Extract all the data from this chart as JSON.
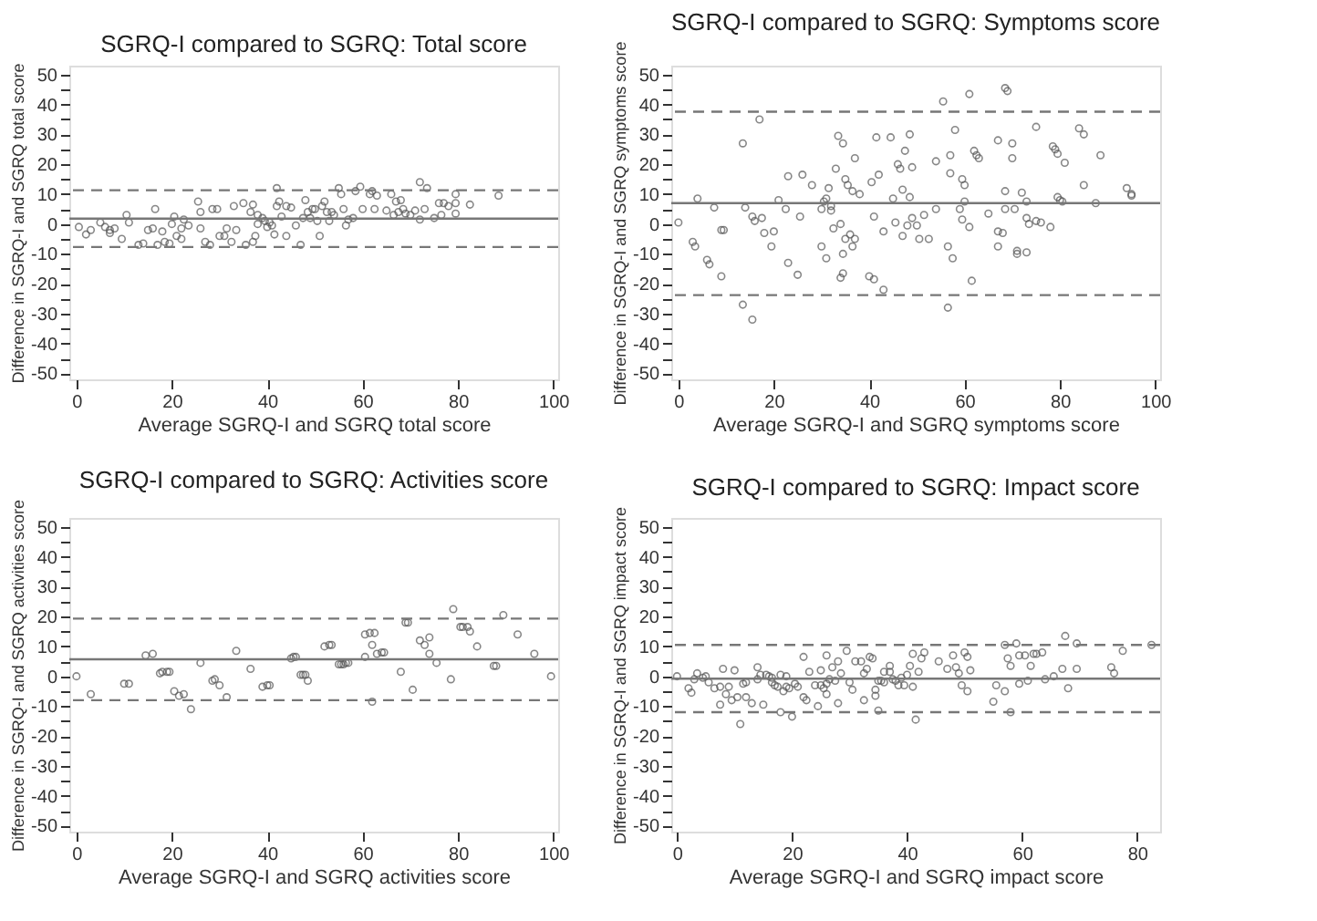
{
  "chart_data": [
    {
      "type": "scatter",
      "title": "SGRQ-I compared to SGRQ: Total score",
      "xlabel": "Average SGRQ-I and SGRQ total score",
      "ylabel": "Difference in SGRQ-I and SGRQ total score",
      "marker": "circle",
      "grid": false,
      "xlim": [
        -1.5,
        101
      ],
      "xticks": [
        0,
        20,
        40,
        60,
        80,
        100
      ],
      "ylim": [
        -52,
        53
      ],
      "yticks": [
        -50,
        {
          "value": -45,
          "label": null
        },
        -40,
        {
          "value": -35,
          "label": null
        },
        -30,
        {
          "value": -25,
          "label": null
        },
        -20,
        {
          "value": -15,
          "label": null
        },
        -10,
        {
          "value": -5,
          "label": null
        },
        0,
        {
          "value": 5,
          "label": null
        },
        10,
        {
          "value": 15,
          "label": null
        },
        20,
        {
          "value": 25,
          "label": null
        },
        30,
        {
          "value": 35,
          "label": null
        },
        40,
        {
          "value": 45,
          "label": null
        },
        50
      ],
      "ref_lines": [
        {
          "axis": "y",
          "value": 1.8,
          "line_style": "solid",
          "color": "#777777"
        },
        {
          "axis": "y",
          "value": 11.3,
          "line_style": "dashed",
          "color": "#777777"
        },
        {
          "axis": "y",
          "value": -7.7,
          "line_style": "dashed",
          "color": "#777777"
        }
      ],
      "series": [
        {
          "color": "#555555",
          "x": [
            0.5,
            2,
            3,
            5,
            6,
            7,
            7,
            8,
            9.5,
            10.5,
            11,
            13,
            14,
            15,
            16,
            16.5,
            17,
            18,
            18.5,
            19.5,
            20,
            20.5,
            21,
            22,
            22.5,
            22,
            23.5,
            25.5,
            26,
            26,
            27,
            28,
            28.5,
            29.5,
            30,
            31,
            31.5,
            32.5,
            33,
            33.5,
            35,
            35.5,
            36.5,
            37,
            37,
            37.5,
            38,
            38,
            39,
            39.5,
            40,
            40.5,
            41,
            41.5,
            42,
            42,
            42.5,
            43,
            44,
            44,
            45,
            46,
            47,
            47.5,
            48,
            48.5,
            49,
            49.5,
            50,
            50.5,
            51,
            51.5,
            52,
            52.5,
            53,
            53.5,
            54,
            55,
            55.5,
            56,
            56.5,
            57,
            58,
            58.5,
            59.5,
            60,
            61.5,
            62,
            62.5,
            63,
            65,
            66,
            66.5,
            67,
            67.5,
            68,
            68.5,
            69,
            70,
            71,
            72,
            72,
            73,
            73.5,
            75,
            76,
            76.5,
            77,
            78,
            79.5,
            79.5,
            79.5,
            82.5,
            88.5
          ],
          "values": [
            -1,
            -3.5,
            -2,
            0.5,
            -1,
            -3,
            -2,
            -1.5,
            -5,
            3,
            0.5,
            -7,
            -6.5,
            -2,
            -1.5,
            5,
            -7,
            -2.5,
            -6,
            -6.5,
            0,
            2.5,
            -4,
            -1.5,
            1.5,
            -5,
            -0.5,
            7.5,
            4,
            -1.5,
            -6,
            -7,
            5,
            5,
            -4,
            -4,
            -1.5,
            -6,
            6,
            -2,
            7,
            -7,
            4,
            6.5,
            -6,
            -4,
            3,
            0,
            2,
            1,
            -1,
            0.5,
            -0.5,
            -3.5,
            12,
            6,
            7.5,
            2.5,
            6,
            -4,
            5.5,
            -0.5,
            -7,
            2,
            8,
            4,
            2,
            5,
            5,
            1,
            -4,
            6,
            7.5,
            4,
            1,
            4,
            3,
            12,
            10,
            5,
            -0.5,
            1.5,
            2,
            11,
            12.5,
            5,
            10,
            11,
            5,
            9.5,
            4.5,
            10,
            3,
            7.5,
            4,
            8,
            5,
            3.5,
            3,
            4.5,
            14,
            1.5,
            5,
            12,
            2,
            7,
            3,
            7,
            6,
            10,
            3.5,
            7,
            6.5,
            9.5
          ]
        }
      ]
    },
    {
      "type": "scatter",
      "title": "SGRQ-I compared to SGRQ: Symptoms score",
      "xlabel": "Average SGRQ-I and SGRQ symptoms score",
      "ylabel": "Difference in SGRQ-I and SGRQ symptoms score",
      "marker": "circle",
      "grid": false,
      "xlim": [
        -1.5,
        101
      ],
      "xticks": [
        0,
        20,
        40,
        60,
        80,
        100
      ],
      "ylim": [
        -52,
        53
      ],
      "yticks": [
        -50,
        {
          "value": -45,
          "label": null
        },
        -40,
        {
          "value": -35,
          "label": null
        },
        -30,
        {
          "value": -25,
          "label": null
        },
        -20,
        {
          "value": -15,
          "label": null
        },
        -10,
        {
          "value": -5,
          "label": null
        },
        0,
        {
          "value": 5,
          "label": null
        },
        10,
        {
          "value": 15,
          "label": null
        },
        20,
        {
          "value": 25,
          "label": null
        },
        30,
        {
          "value": 35,
          "label": null
        },
        40,
        {
          "value": 45,
          "label": null
        },
        50
      ],
      "ref_lines": [
        {
          "axis": "y",
          "value": 7,
          "line_style": "solid",
          "color": "#777777"
        },
        {
          "axis": "y",
          "value": 37.6,
          "line_style": "dashed",
          "color": "#777777"
        },
        {
          "axis": "y",
          "value": -23.8,
          "line_style": "dashed",
          "color": "#777777"
        }
      ],
      "series": [
        {
          "color": "#555555",
          "x": [
            0,
            3,
            3.5,
            4,
            6,
            6.5,
            7.5,
            9,
            9,
            9.5,
            13.5,
            13.5,
            14,
            15.5,
            16,
            15.5,
            17,
            17.5,
            18,
            19.5,
            20,
            21,
            22.5,
            23,
            23,
            25,
            25.5,
            26,
            28,
            30,
            30,
            30.5,
            31,
            31,
            31.5,
            32,
            32,
            32.5,
            33,
            33.5,
            34,
            34.5,
            34.5,
            34,
            34.5,
            35,
            35,
            35.5,
            36,
            36.5,
            36.5,
            37,
            37,
            38,
            40,
            40.5,
            41,
            41,
            41.5,
            42,
            43,
            43,
            44.5,
            45,
            45.5,
            46,
            46.5,
            47,
            47,
            47.5,
            48,
            48.5,
            48.5,
            49,
            49,
            50,
            50.5,
            51.5,
            52.5,
            54,
            54,
            55.5,
            56.5,
            56.5,
            57,
            57,
            57.5,
            58,
            59,
            59.5,
            59.5,
            60,
            60,
            61,
            61,
            61.5,
            62,
            62.5,
            63,
            65,
            67,
            67,
            67,
            68,
            68.5,
            68.5,
            68.5,
            69,
            70,
            70,
            70.5,
            71,
            71,
            72,
            73,
            73,
            73,
            73.5,
            75,
            75,
            76,
            78,
            78.5,
            79,
            79.5,
            79.5,
            80,
            80.5,
            81,
            84,
            85,
            85,
            87.5,
            88.5,
            94,
            95,
            95
          ],
          "values": [
            0.5,
            -6,
            -7.5,
            8.5,
            -12,
            -13.5,
            5.5,
            -17.5,
            -2,
            -2,
            27,
            -27,
            5.5,
            2.5,
            1,
            -32,
            35,
            2,
            -3,
            -7.5,
            -2.5,
            8,
            5,
            16,
            -13,
            -17,
            2.5,
            16.5,
            13,
            5,
            -7.5,
            7.5,
            -11.5,
            8.5,
            12,
            6,
            4.5,
            -1.5,
            18.5,
            29.5,
            -18,
            -16.5,
            -10,
            0,
            27,
            15,
            -5,
            13,
            -3.5,
            11,
            -7.5,
            22,
            -5,
            10,
            -17.5,
            14,
            -18.5,
            2.5,
            29,
            16.5,
            -22,
            -2.5,
            29,
            8.5,
            0.5,
            20,
            18.5,
            11.5,
            -4,
            24.5,
            -0.5,
            30,
            9,
            19,
            2,
            -0.5,
            -5,
            3,
            -5,
            21,
            5,
            41,
            -28,
            -7.5,
            23,
            17,
            -11.5,
            31.5,
            5,
            15,
            1.5,
            7.5,
            13,
            43.5,
            -1,
            -19,
            24.5,
            23,
            22,
            3.5,
            28,
            -2.5,
            -7.5,
            -3,
            5,
            11,
            45.5,
            44.5,
            27,
            22,
            5,
            -9,
            -10,
            10.5,
            7.5,
            2,
            -9.5,
            0,
            32.5,
            1,
            0.5,
            -1,
            26,
            25,
            23.5,
            9,
            8,
            7.5,
            20.5,
            32,
            30,
            13,
            7,
            23,
            12,
            10,
            9.5
          ]
        }
      ]
    },
    {
      "type": "scatter",
      "title": "SGRQ-I compared to SGRQ: Activities score",
      "xlabel": "Average SGRQ-I and SGRQ activities score",
      "ylabel": "Difference in SGRQ-I and SGRQ activities score",
      "marker": "circle",
      "grid": false,
      "xlim": [
        -1.5,
        101
      ],
      "xticks": [
        0,
        20,
        40,
        60,
        80,
        100
      ],
      "ylim": [
        -52,
        53
      ],
      "yticks": [
        -50,
        {
          "value": -45,
          "label": null
        },
        -40,
        {
          "value": -35,
          "label": null
        },
        -30,
        {
          "value": -25,
          "label": null
        },
        -20,
        {
          "value": -15,
          "label": null
        },
        -10,
        {
          "value": -5,
          "label": null
        },
        0,
        {
          "value": 5,
          "label": null
        },
        10,
        {
          "value": 15,
          "label": null
        },
        20,
        {
          "value": 25,
          "label": null
        },
        30,
        {
          "value": 35,
          "label": null
        },
        40,
        {
          "value": 45,
          "label": null
        },
        50
      ],
      "ref_lines": [
        {
          "axis": "y",
          "value": 5.7,
          "line_style": "solid",
          "color": "#777777"
        },
        {
          "axis": "y",
          "value": 19.3,
          "line_style": "dashed",
          "color": "#777777"
        },
        {
          "axis": "y",
          "value": -8,
          "line_style": "dashed",
          "color": "#777777"
        }
      ],
      "series": [
        {
          "color": "#555555",
          "x": [
            0,
            3,
            10,
            11,
            14.5,
            16,
            17.5,
            18,
            19,
            19.5,
            20.5,
            21.5,
            22.5,
            24,
            26,
            28.5,
            29,
            30,
            31.5,
            33.5,
            36.5,
            39,
            40,
            40.5,
            45,
            45.5,
            46,
            47,
            47.5,
            48,
            48.5,
            52,
            53,
            53.5,
            55,
            55.5,
            56,
            56.5,
            57,
            60.5,
            60.5,
            61.5,
            62,
            62.5,
            62,
            63,
            64,
            64.5,
            68,
            69,
            69.5,
            70.5,
            72,
            73,
            74,
            74,
            75.5,
            78.5,
            79,
            80.5,
            81,
            82,
            82.5,
            84,
            87.5,
            88,
            89.5,
            92.5,
            96,
            99.5
          ],
          "values": [
            0,
            -6,
            -2.5,
            -2.5,
            7,
            7.5,
            1,
            1.5,
            1.5,
            1.5,
            -5,
            -6.5,
            -6,
            -11,
            4.5,
            -1.5,
            -1,
            -3,
            -7,
            8.5,
            2.5,
            -3.5,
            -3,
            -3,
            6,
            6.5,
            6.5,
            0.5,
            0.5,
            0.5,
            -1.5,
            10,
            10.5,
            10.5,
            4,
            4,
            4,
            4.5,
            4.5,
            14,
            6.5,
            14.5,
            10.5,
            14.5,
            -8.5,
            7.5,
            8,
            8,
            1.5,
            18,
            18,
            -4.5,
            12,
            10.5,
            13,
            7.5,
            4.5,
            -1,
            22.5,
            16.5,
            16.5,
            16.5,
            15,
            10,
            3.5,
            3.5,
            20.5,
            14,
            7.5,
            0
          ]
        }
      ]
    },
    {
      "type": "scatter",
      "title": "SGRQ-I compared to SGRQ: Impact score",
      "xlabel": "Average SGRQ-I and SGRQ impact score",
      "ylabel": "Difference in SGRQ-I and SGRQ impact score",
      "marker": "circle",
      "grid": false,
      "xlim": [
        -1,
        84
      ],
      "xticks": [
        0,
        20,
        40,
        60,
        80
      ],
      "ylim": [
        -52,
        53
      ],
      "yticks": [
        -50,
        {
          "value": -45,
          "label": null
        },
        -40,
        {
          "value": -35,
          "label": null
        },
        -30,
        {
          "value": -25,
          "label": null
        },
        -20,
        {
          "value": -15,
          "label": null
        },
        -10,
        {
          "value": -5,
          "label": null
        },
        0,
        {
          "value": 5,
          "label": null
        },
        10,
        {
          "value": 15,
          "label": null
        },
        20,
        {
          "value": 25,
          "label": null
        },
        30,
        {
          "value": 35,
          "label": null
        },
        40,
        {
          "value": 45,
          "label": null
        },
        50
      ],
      "ref_lines": [
        {
          "axis": "y",
          "value": -0.8,
          "line_style": "solid",
          "color": "#777777"
        },
        {
          "axis": "y",
          "value": 10.5,
          "line_style": "dashed",
          "color": "#777777"
        },
        {
          "axis": "y",
          "value": -12,
          "line_style": "dashed",
          "color": "#777777"
        }
      ],
      "series": [
        {
          "color": "#555555",
          "x": [
            0,
            2,
            2.5,
            3,
            3.5,
            4.5,
            5,
            5.5,
            6.5,
            7.5,
            7.5,
            8,
            8.5,
            9,
            9.5,
            10,
            10.5,
            11,
            11.5,
            12,
            12,
            13,
            14,
            14,
            14.5,
            15,
            15.5,
            16,
            16.5,
            16.5,
            17,
            17.5,
            18,
            18,
            18.5,
            19,
            19,
            19.5,
            20,
            20.5,
            21,
            22,
            22.5,
            22,
            23,
            24,
            24.5,
            25,
            25,
            25.5,
            26,
            26,
            26,
            26.5,
            27,
            27.5,
            28,
            28,
            28.5,
            29.5,
            30,
            30.5,
            31,
            32,
            32.5,
            32.5,
            33,
            33.5,
            34,
            34.5,
            34.5,
            35,
            35,
            35.5,
            36,
            36,
            37,
            37,
            37.5,
            38,
            38.5,
            39,
            39.5,
            40,
            40.5,
            41,
            41,
            41.5,
            42,
            42.5,
            43,
            45.5,
            47,
            48,
            48.5,
            49,
            49.5,
            50,
            50.5,
            50.5,
            51,
            55,
            55.5,
            57,
            57,
            57.5,
            58,
            58,
            59,
            59.5,
            59.5,
            60.5,
            61,
            61.5,
            62,
            62.5,
            63.5,
            64,
            65.5,
            67,
            67.5,
            68,
            69.5,
            69.5,
            75.5,
            76,
            77.5,
            82.5
          ],
          "values": [
            0,
            -4,
            -5.5,
            -1,
            1,
            -0.5,
            0,
            -2,
            -4,
            -9.5,
            -3.5,
            2.5,
            -6,
            -3.5,
            -8,
            2,
            -7,
            -16,
            -2.5,
            -7,
            -2,
            -9,
            3,
            -1,
            0.5,
            -9.5,
            0.5,
            0,
            -0.5,
            -2,
            -3,
            -3.5,
            0.5,
            -12,
            -5,
            -3.5,
            0,
            -4,
            -13.5,
            -2.5,
            -3.5,
            6.5,
            -8,
            -7,
            1.5,
            -3,
            -10,
            2,
            -3,
            -4,
            -2.5,
            -6,
            7,
            -1,
            3,
            -1.5,
            5,
            -9,
            1,
            8.5,
            -2,
            -4.5,
            5,
            5,
            1,
            -8,
            2.5,
            6.5,
            6,
            -4.5,
            -6.5,
            -11.5,
            -1.5,
            -1.5,
            1.5,
            -2,
            3.5,
            1.5,
            -1,
            -1.5,
            -3,
            -0.5,
            -3,
            0.5,
            3.5,
            -3.5,
            7.5,
            -14.5,
            1.5,
            6,
            8,
            5,
            2.5,
            7,
            3,
            1,
            -3,
            8,
            6.5,
            -5,
            2,
            -8.5,
            -3,
            10.5,
            -5,
            6,
            3.5,
            -12,
            11,
            -2.5,
            7,
            7,
            -1.5,
            3.5,
            7.5,
            7.5,
            8,
            -1,
            0,
            2.5,
            13.5,
            -4,
            11,
            2.5,
            3,
            1,
            8.5,
            10.5
          ]
        }
      ]
    }
  ]
}
